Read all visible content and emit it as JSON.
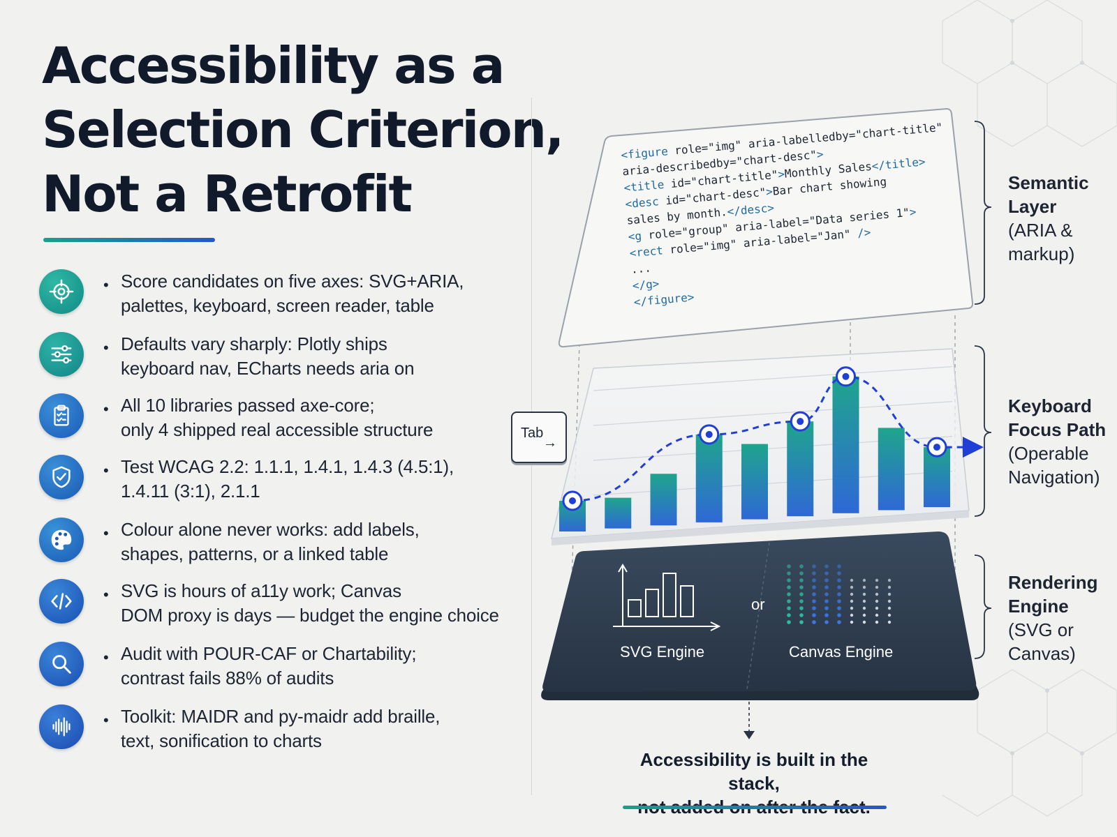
{
  "title_lines": [
    "Accessibility as a",
    "Selection Criterion,",
    "Not a Retrofit"
  ],
  "colors": {
    "accent_teal": "#19a08a",
    "accent_blue": "#2458c8",
    "focus_blue": "#1f3fd6",
    "engine_dark": "#2f3d50"
  },
  "bullets": [
    {
      "icon": "target-icon",
      "line1": "Score candidates on five axes: SVG+ARIA,",
      "line2": "palettes, keyboard, screen reader, table"
    },
    {
      "icon": "sliders-icon",
      "line1": "Defaults vary sharply: Plotly ships",
      "line2": "keyboard nav, ECharts needs aria on"
    },
    {
      "icon": "clipboard-check-icon",
      "line1": "All 10 libraries passed axe-core;",
      "line2": "only 4 shipped real accessible structure"
    },
    {
      "icon": "shield-check-icon",
      "line1": "Test WCAG 2.2: 1.1.1, 1.4.1, 1.4.3 (4.5:1),",
      "line2": "1.4.11 (3:1), 2.1.1"
    },
    {
      "icon": "palette-icon",
      "line1": "Colour alone never works: add labels,",
      "line2": "shapes, patterns, or a linked table"
    },
    {
      "icon": "code-icon",
      "line1": "SVG is hours of a11y work; Canvas",
      "line2": "DOM proxy is days — budget the engine choice"
    },
    {
      "icon": "magnifier-icon",
      "line1": "Audit with POUR-CAF or Chartability;",
      "line2": "contrast fails 88% of audits"
    },
    {
      "icon": "waveform-icon",
      "line1": "Toolkit: MAIDR and py-maidr add braille,",
      "line2": "text, sonification to charts"
    }
  ],
  "code_lines": [
    "<figure role=\"img\" aria-labelledby=\"chart-title\"",
    "  aria-describedby=\"chart-desc\">",
    "  <title id=\"chart-title\">Monthly Sales</title>",
    "  <desc id=\"chart-desc\">Bar chart showing",
    "    sales by month.</desc>",
    "  <g role=\"group\" aria-label=\"Data series 1\">",
    "    <rect role=\"img\" aria-label=\"Jan\" />",
    "    ...",
    "  </g>",
    "</figure>"
  ],
  "layers": [
    {
      "title_line1": "Semantic",
      "title_line2": "Layer",
      "sub_line1": "(ARIA &",
      "sub_line2": "markup)"
    },
    {
      "title_line1": "Keyboard",
      "title_line2": "Focus Path",
      "sub_line1": "(Operable",
      "sub_line2": "Navigation)"
    },
    {
      "title_line1": "Rendering",
      "title_line2": "Engine",
      "sub_line1": "(SVG or",
      "sub_line2": "Canvas)"
    }
  ],
  "tab_key": {
    "label": "Tab",
    "arrow": "→"
  },
  "chart_data": {
    "type": "bar",
    "values": [
      22,
      22,
      37,
      63,
      54,
      68,
      98,
      59,
      43
    ],
    "ylim": [
      0,
      100
    ],
    "focus_stops": [
      0,
      3,
      5,
      6,
      8
    ],
    "grid": true
  },
  "engines": {
    "svg_label": "SVG Engine",
    "or_label": "or",
    "canvas_label": "Canvas Engine"
  },
  "footer": {
    "line1": "Accessibility is built in the stack,",
    "line2": "not added on after the fact."
  }
}
